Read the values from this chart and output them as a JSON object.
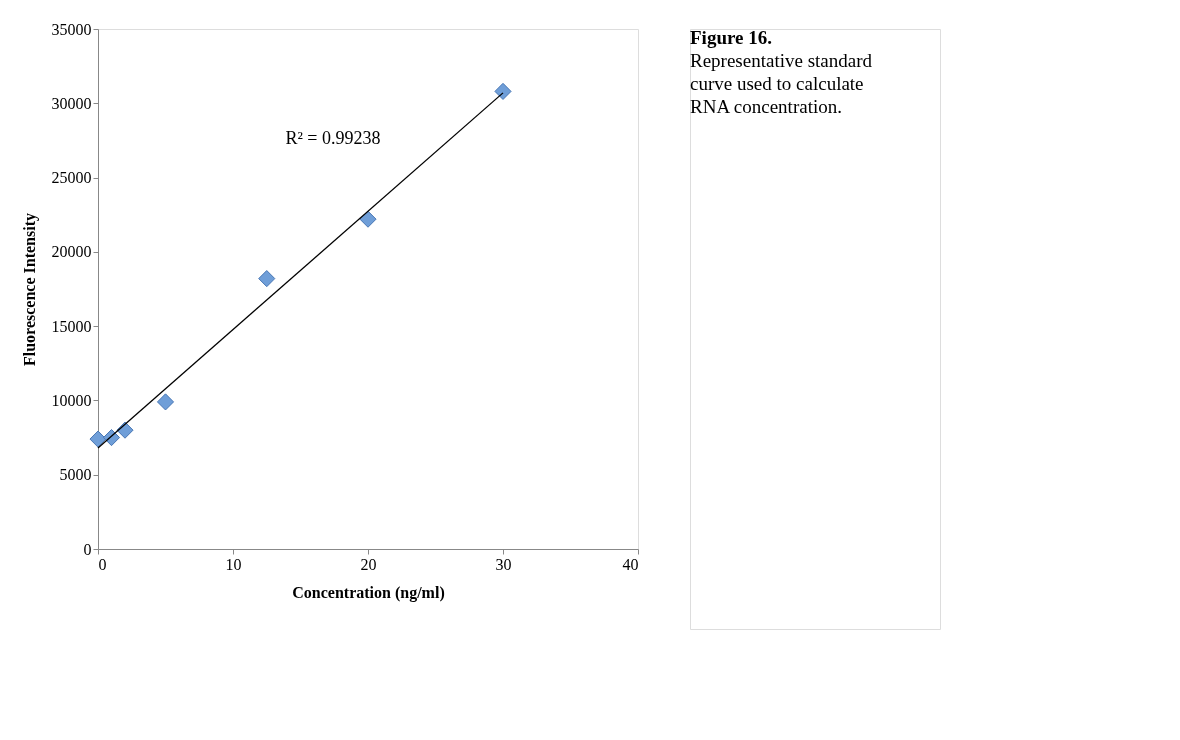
{
  "chart_data": {
    "type": "scatter",
    "title": "Figure 16.",
    "subtitle": "Representative standard curve used to calculate RNA concentration.",
    "xlabel": "Concentration (ng/ml)",
    "ylabel": "Fluorescence Intensity",
    "series": [
      {
        "color": "#6f9ed8",
        "marker": "diamond",
        "x": [
          0,
          1,
          2,
          5,
          12.5,
          20,
          30
        ],
        "values": [
          7400,
          7500,
          8000,
          9900,
          18200,
          22200,
          30800
        ]
      },
      {
        "type": "line",
        "color": "#000000",
        "line_style": "solid",
        "x": [
          0,
          30
        ],
        "values": [
          6800,
          30700
        ]
      }
    ],
    "annotations": [
      "R² = 0.99238"
    ],
    "xlim": [
      0,
      40
    ],
    "ylim": [
      0,
      35000
    ],
    "xticks": [
      0,
      10,
      20,
      30,
      40
    ],
    "yticks": [
      0,
      5000,
      10000,
      15000,
      20000,
      25000,
      30000,
      35000
    ],
    "grid": false
  }
}
